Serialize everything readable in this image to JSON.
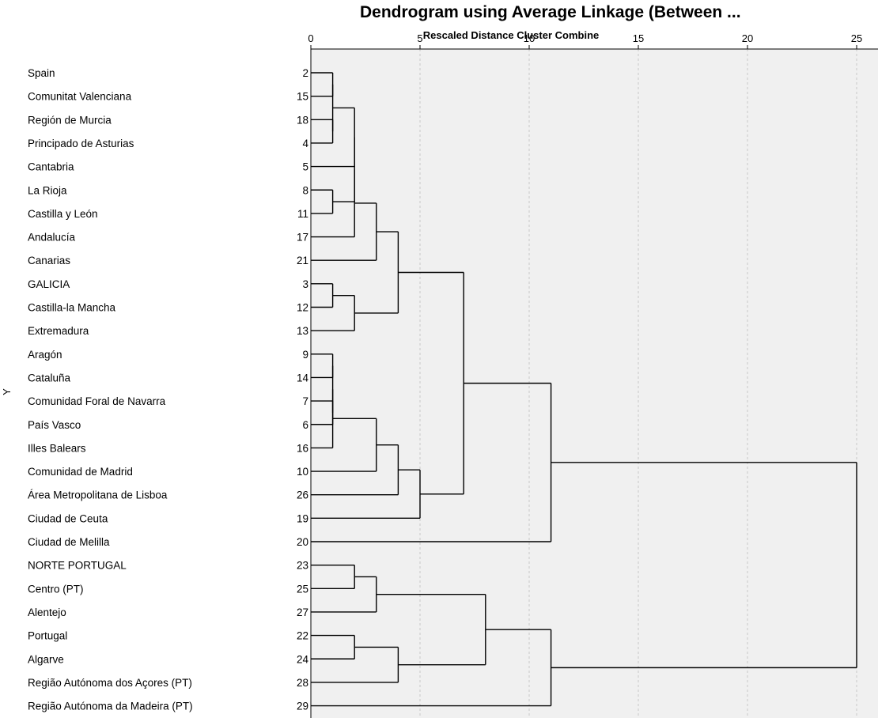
{
  "chart_data": {
    "type": "dendrogram",
    "title": "Dendrogram using Average Linkage (Between ...",
    "subtitle": "Rescaled Distance Cluster Combine",
    "ylabel": "Y",
    "xlim": [
      0,
      25
    ],
    "x_ticks": [
      "0",
      "5",
      "10",
      "15",
      "20",
      "25"
    ],
    "grid": true,
    "leaves": [
      {
        "label": "Spain",
        "id": "2"
      },
      {
        "label": "Comunitat Valenciana",
        "id": "15"
      },
      {
        "label": "Región de Murcia",
        "id": "18"
      },
      {
        "label": "Principado de Asturias",
        "id": "4"
      },
      {
        "label": "Cantabria",
        "id": "5"
      },
      {
        "label": "La Rioja",
        "id": "8"
      },
      {
        "label": "Castilla y León",
        "id": "11"
      },
      {
        "label": "Andalucía",
        "id": "17"
      },
      {
        "label": "Canarias",
        "id": "21"
      },
      {
        "label": "GALICIA",
        "id": "3"
      },
      {
        "label": "Castilla-la Mancha",
        "id": "12"
      },
      {
        "label": "Extremadura",
        "id": "13"
      },
      {
        "label": "Aragón",
        "id": "9"
      },
      {
        "label": "Cataluña",
        "id": "14"
      },
      {
        "label": "Comunidad Foral de Navarra",
        "id": "7"
      },
      {
        "label": "País Vasco",
        "id": "6"
      },
      {
        "label": "Illes Balears",
        "id": "16"
      },
      {
        "label": "Comunidad de Madrid",
        "id": "10"
      },
      {
        "label": "Área Metropolitana de Lisboa",
        "id": "26"
      },
      {
        "label": "Ciudad de Ceuta",
        "id": "19"
      },
      {
        "label": "Ciudad de Melilla",
        "id": "20"
      },
      {
        "label": "NORTE PORTUGAL",
        "id": "23"
      },
      {
        "label": "Centro (PT)",
        "id": "25"
      },
      {
        "label": "Alentejo",
        "id": "27"
      },
      {
        "label": "Portugal",
        "id": "22"
      },
      {
        "label": "Algarve",
        "id": "24"
      },
      {
        "label": "Região Autónoma dos Açores (PT)",
        "id": "28"
      },
      {
        "label": "Região Autónoma da Madeira (PT)",
        "id": "29"
      }
    ],
    "merges": [
      {
        "id": "A",
        "left": 0,
        "right": 1,
        "height": 1
      },
      {
        "id": "B",
        "left": 2,
        "right": 3,
        "height": 1
      },
      {
        "id": "C",
        "left": "A",
        "right": "B",
        "height": 1
      },
      {
        "id": "D",
        "left": 5,
        "right": 6,
        "height": 1
      },
      {
        "id": "E",
        "left": "C",
        "right": 4,
        "height": 2
      },
      {
        "id": "F",
        "left": "E",
        "right": "D",
        "height": 2
      },
      {
        "id": "F2",
        "left": "F",
        "right": 7,
        "height": 2
      },
      {
        "id": "G",
        "left": "F2",
        "right": 8,
        "height": 3
      },
      {
        "id": "H",
        "left": 9,
        "right": 10,
        "height": 1
      },
      {
        "id": "I",
        "left": "H",
        "right": 11,
        "height": 2
      },
      {
        "id": "J",
        "left": "G",
        "right": "I",
        "height": 4
      },
      {
        "id": "K",
        "left": 12,
        "right": 13,
        "height": 1
      },
      {
        "id": "L",
        "left": 14,
        "right": 15,
        "height": 1
      },
      {
        "id": "M",
        "left": "K",
        "right": "L",
        "height": 1
      },
      {
        "id": "N",
        "left": "M",
        "right": 16,
        "height": 1
      },
      {
        "id": "O",
        "left": "N",
        "right": 17,
        "height": 3
      },
      {
        "id": "P",
        "left": "O",
        "right": 18,
        "height": 4
      },
      {
        "id": "Q",
        "left": "P",
        "right": 19,
        "height": 5
      },
      {
        "id": "R",
        "left": "J",
        "right": "Q",
        "height": 7
      },
      {
        "id": "S",
        "left": "R",
        "right": 20,
        "height": 11
      },
      {
        "id": "T",
        "left": 21,
        "right": 22,
        "height": 2
      },
      {
        "id": "U",
        "left": "T",
        "right": 23,
        "height": 3
      },
      {
        "id": "V",
        "left": 24,
        "right": 25,
        "height": 2
      },
      {
        "id": "W",
        "left": "V",
        "right": 26,
        "height": 4
      },
      {
        "id": "X",
        "left": "U",
        "right": "W",
        "height": 8
      },
      {
        "id": "Y",
        "left": "X",
        "right": 27,
        "height": 11
      },
      {
        "id": "Z",
        "left": "S",
        "right": "Y",
        "height": 25
      }
    ]
  }
}
